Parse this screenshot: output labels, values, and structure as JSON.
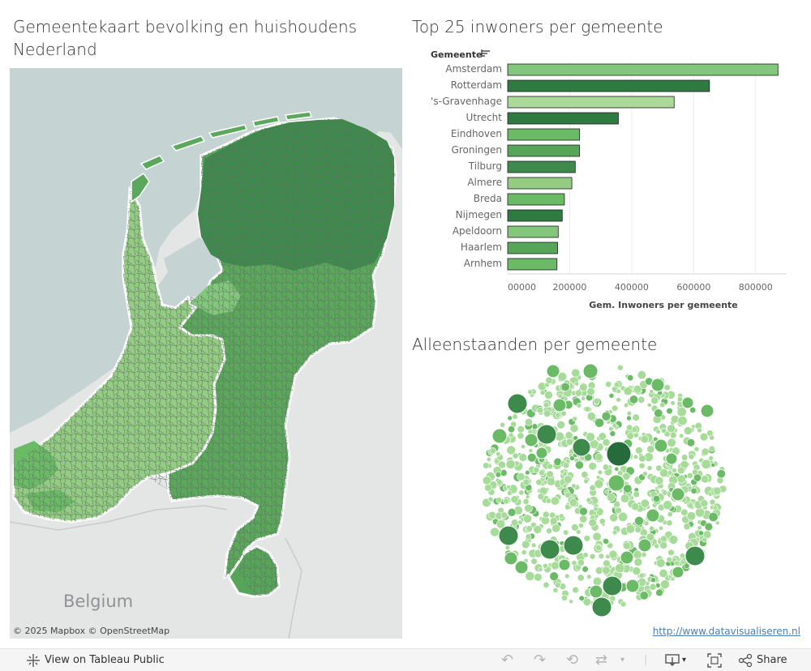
{
  "map": {
    "title": "Gemeentekaart bevolking en huishoudens Nederland",
    "country_label": "Belgium",
    "attribution": "© 2025 Mapbox  © OpenStreetMap",
    "colors": {
      "water": "#c5d3d3",
      "land_bg": "#e4e6e6",
      "light": "#93cc82",
      "mid": "#5ba75b",
      "dark": "#3e8a4d",
      "border": "#5f6d62"
    }
  },
  "bar_chart": {
    "title": "Top 25 inwoners per gemeente",
    "sort_label": "Gemeente",
    "chart_data": {
      "type": "bar",
      "orientation": "horizontal",
      "categories": [
        "Amsterdam",
        "Rotterdam",
        "'s-Gravenhage",
        "Utrecht",
        "Eindhoven",
        "Groningen",
        "Tilburg",
        "Almere",
        "Breda",
        "Nijmegen",
        "Apeldoorn",
        "Haarlem",
        "Arnhem"
      ],
      "values": [
        872000,
        651000,
        537000,
        357000,
        232000,
        232000,
        218000,
        207000,
        183000,
        176000,
        163000,
        161000,
        159000
      ],
      "colors": [
        "#82c77c",
        "#2f7a41",
        "#abd99a",
        "#2f7a41",
        "#6bba66",
        "#56a559",
        "#3e8a4d",
        "#93cc82",
        "#6bba66",
        "#2f7a41",
        "#82c77c",
        "#56a559",
        "#6bba66"
      ],
      "x_ticks": [
        "00000",
        "200000",
        "400000",
        "600000",
        "800000"
      ],
      "xlabel": "Gem. Inwoners per gemeente",
      "xlim": [
        0,
        900000
      ],
      "grid": true
    }
  },
  "bubble_chart": {
    "title": "Alleenstaanden per gemeente",
    "colors": {
      "light": "#a6db99",
      "mid": "#6bba66",
      "dark": "#3e8a4d",
      "darkest": "#256b3b"
    }
  },
  "footer": {
    "link": "http://www.datavisualiseren.nl"
  },
  "toolbar": {
    "view_label": "View on Tableau Public",
    "share_label": "Share",
    "icons": [
      "tableau-logo-icon",
      "undo-icon",
      "redo-icon",
      "revert-icon",
      "refresh-icon",
      "download-icon",
      "fullscreen-icon",
      "share-icon"
    ]
  }
}
